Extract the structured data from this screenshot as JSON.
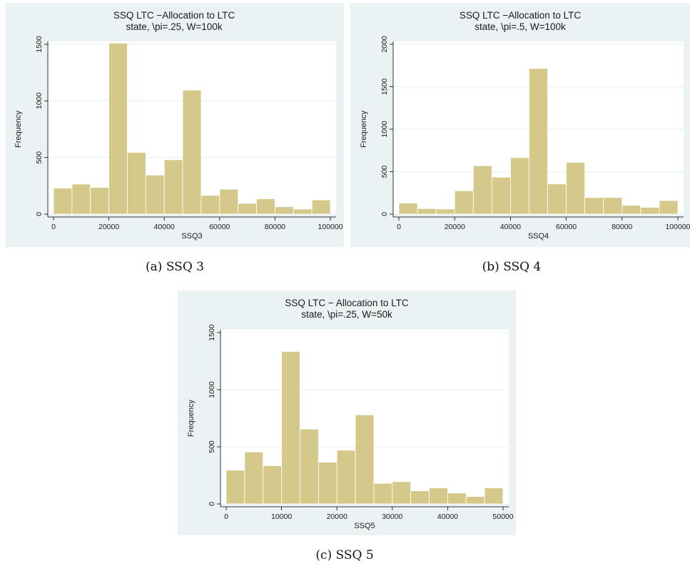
{
  "chart_data": [
    {
      "type": "bar",
      "title": "SSQ LTC −Allocation to LTC",
      "subtitle": "state, \\pi=.25, W=100k",
      "xlabel": "SSQ3",
      "ylabel": "Frequency",
      "caption": "(a) SSQ 3",
      "bin_edges": [
        0,
        6667,
        13333,
        20000,
        26667,
        33333,
        40000,
        46667,
        53333,
        60000,
        66667,
        73333,
        80000,
        86667,
        93333,
        100000
      ],
      "values": [
        230,
        265,
        235,
        1510,
        545,
        345,
        480,
        1095,
        165,
        220,
        95,
        135,
        65,
        45,
        125
      ],
      "xlim": [
        0,
        100000
      ],
      "ylim": [
        0,
        1500
      ],
      "xticks": [
        0,
        20000,
        40000,
        60000,
        80000,
        100000
      ],
      "xtick_labels": [
        "0",
        "20000",
        "40000",
        "60000",
        "80000",
        "100000"
      ],
      "yticks": [
        0,
        500,
        1000,
        1500
      ],
      "ytick_labels": [
        "0",
        "500",
        "1000",
        "1500"
      ],
      "bar_color": "#d4c98a",
      "grid": true
    },
    {
      "type": "bar",
      "title": "SSQ LTC −Allocation to LTC",
      "subtitle": "state, \\pi=.5, W=100k",
      "xlabel": "SSQ4",
      "ylabel": "Frequency",
      "caption": "(b) SSQ 4",
      "bin_edges": [
        0,
        6667,
        13333,
        20000,
        26667,
        33333,
        40000,
        46667,
        53333,
        60000,
        66667,
        73333,
        80000,
        86667,
        93333,
        100000
      ],
      "values": [
        130,
        65,
        60,
        275,
        570,
        435,
        665,
        1715,
        355,
        610,
        195,
        195,
        105,
        80,
        160
      ],
      "xlim": [
        0,
        100000
      ],
      "ylim": [
        0,
        2000
      ],
      "xticks": [
        0,
        20000,
        40000,
        60000,
        80000,
        100000
      ],
      "xtick_labels": [
        "0",
        "20000",
        "40000",
        "60000",
        "80000",
        "100000"
      ],
      "yticks": [
        0,
        500,
        1000,
        1500,
        2000
      ],
      "ytick_labels": [
        "0",
        "500",
        "1000",
        "1500",
        "2000"
      ],
      "bar_color": "#d4c98a",
      "grid": true
    },
    {
      "type": "bar",
      "title": "SSQ LTC − Allocation to LTC",
      "subtitle": "state, \\pi=.25, W=50k",
      "xlabel": "SSQ5",
      "ylabel": "Frequency",
      "caption": "(c) SSQ 5",
      "bin_edges": [
        0,
        3333,
        6667,
        10000,
        13333,
        16667,
        20000,
        23333,
        26667,
        30000,
        33333,
        36667,
        40000,
        43333,
        46667,
        50000
      ],
      "values": [
        295,
        455,
        335,
        1335,
        655,
        365,
        470,
        780,
        180,
        195,
        115,
        140,
        95,
        65,
        140
      ],
      "xlim": [
        0,
        50000
      ],
      "ylim": [
        0,
        1500
      ],
      "xticks": [
        0,
        10000,
        20000,
        30000,
        40000,
        50000
      ],
      "xtick_labels": [
        "0",
        "10000",
        "20000",
        "30000",
        "40000",
        "50000"
      ],
      "yticks": [
        0,
        500,
        1000,
        1500
      ],
      "ytick_labels": [
        "0",
        "500",
        "1000",
        "1500"
      ],
      "bar_color": "#d4c98a",
      "grid": true
    }
  ]
}
